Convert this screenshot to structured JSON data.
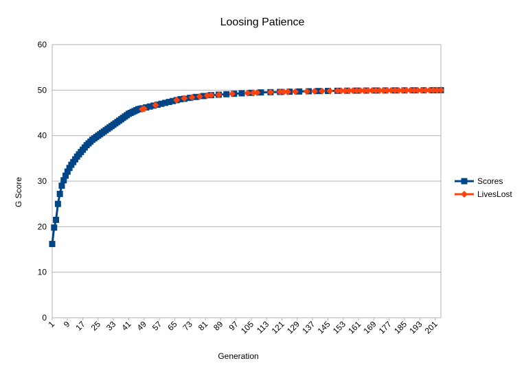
{
  "chart_data": {
    "type": "line",
    "title": "Loosing Patience",
    "xlabel": "Generation",
    "ylabel": "G Score",
    "ylim": [
      0,
      60
    ],
    "yticks": [
      0,
      10,
      20,
      30,
      40,
      50,
      60
    ],
    "xlim": [
      1,
      204
    ],
    "xticks": [
      1,
      9,
      17,
      25,
      33,
      41,
      49,
      57,
      65,
      73,
      81,
      89,
      97,
      105,
      113,
      121,
      129,
      137,
      145,
      153,
      161,
      169,
      177,
      185,
      193,
      201
    ],
    "grid": "horizontal",
    "legend": "right",
    "series": [
      {
        "name": "Scores",
        "color": "#004586",
        "marker": "square",
        "points": [
          [
            1,
            16.2
          ],
          [
            2,
            19.8
          ],
          [
            3,
            21.5
          ],
          [
            4,
            25.0
          ],
          [
            5,
            27.2
          ],
          [
            6,
            29.0
          ],
          [
            7,
            30.2
          ],
          [
            8,
            31.2
          ],
          [
            9,
            32.1
          ],
          [
            10,
            32.9
          ],
          [
            11,
            33.6
          ],
          [
            12,
            34.2
          ],
          [
            13,
            34.8
          ],
          [
            14,
            35.4
          ],
          [
            15,
            35.9
          ],
          [
            16,
            36.4
          ],
          [
            17,
            36.9
          ],
          [
            18,
            37.4
          ],
          [
            19,
            37.9
          ],
          [
            20,
            38.3
          ],
          [
            21,
            38.7
          ],
          [
            22,
            39.1
          ],
          [
            23,
            39.4
          ],
          [
            24,
            39.7
          ],
          [
            25,
            40.0
          ],
          [
            26,
            40.3
          ],
          [
            27,
            40.6
          ],
          [
            28,
            40.9
          ],
          [
            29,
            41.2
          ],
          [
            30,
            41.5
          ],
          [
            31,
            41.8
          ],
          [
            32,
            42.1
          ],
          [
            33,
            42.4
          ],
          [
            34,
            42.7
          ],
          [
            35,
            43.0
          ],
          [
            36,
            43.3
          ],
          [
            37,
            43.6
          ],
          [
            38,
            43.9
          ],
          [
            39,
            44.2
          ],
          [
            40,
            44.5
          ],
          [
            41,
            44.8
          ],
          [
            42,
            45.0
          ],
          [
            43,
            45.2
          ],
          [
            44,
            45.4
          ],
          [
            45,
            45.6
          ],
          [
            46,
            45.8
          ],
          [
            47,
            45.9
          ],
          [
            48,
            46.0
          ],
          [
            50,
            46.2
          ],
          [
            52,
            46.4
          ],
          [
            54,
            46.6
          ],
          [
            56,
            46.8
          ],
          [
            58,
            47.0
          ],
          [
            60,
            47.2
          ],
          [
            62,
            47.4
          ],
          [
            64,
            47.6
          ],
          [
            66,
            47.8
          ],
          [
            68,
            48.0
          ],
          [
            70,
            48.1
          ],
          [
            73,
            48.3
          ],
          [
            76,
            48.5
          ],
          [
            80,
            48.7
          ],
          [
            84,
            48.9
          ],
          [
            88,
            49.0
          ],
          [
            92,
            49.1
          ],
          [
            96,
            49.2
          ],
          [
            100,
            49.3
          ],
          [
            105,
            49.4
          ],
          [
            110,
            49.5
          ],
          [
            115,
            49.55
          ],
          [
            120,
            49.6
          ],
          [
            125,
            49.65
          ],
          [
            130,
            49.7
          ],
          [
            135,
            49.75
          ],
          [
            140,
            49.8
          ],
          [
            145,
            49.82
          ],
          [
            150,
            49.85
          ],
          [
            155,
            49.87
          ],
          [
            160,
            49.89
          ],
          [
            165,
            49.9
          ],
          [
            170,
            49.92
          ],
          [
            175,
            49.93
          ],
          [
            180,
            49.94
          ],
          [
            185,
            49.95
          ],
          [
            190,
            49.96
          ],
          [
            195,
            49.97
          ],
          [
            200,
            49.98
          ],
          [
            204,
            49.99
          ]
        ]
      },
      {
        "name": "LivesLost",
        "color": "#ff420e",
        "marker": "diamond",
        "points": [
          [
            48,
            45.8
          ],
          [
            49,
            45.9
          ],
          [
            55,
            46.7
          ],
          [
            66,
            47.8
          ],
          [
            70,
            48.2
          ],
          [
            74,
            48.4
          ],
          [
            78,
            48.6
          ],
          [
            82,
            48.8
          ],
          [
            84,
            48.9
          ],
          [
            88,
            49.0
          ],
          [
            95,
            49.2
          ],
          [
            103,
            49.35
          ],
          [
            106,
            49.4
          ],
          [
            108,
            49.45
          ],
          [
            115,
            49.55
          ],
          [
            120,
            49.6
          ],
          [
            122,
            49.62
          ],
          [
            124,
            49.63
          ],
          [
            128,
            49.66
          ],
          [
            134,
            49.7
          ],
          [
            138,
            49.75
          ],
          [
            142,
            49.78
          ],
          [
            146,
            49.82
          ],
          [
            150,
            49.85
          ],
          [
            152,
            49.86
          ],
          [
            154,
            49.87
          ],
          [
            156,
            49.88
          ],
          [
            158,
            49.88
          ],
          [
            160,
            49.89
          ],
          [
            162,
            49.9
          ],
          [
            164,
            49.9
          ],
          [
            166,
            49.91
          ],
          [
            168,
            49.91
          ],
          [
            170,
            49.92
          ],
          [
            172,
            49.92
          ],
          [
            174,
            49.93
          ],
          [
            176,
            49.93
          ],
          [
            178,
            49.94
          ],
          [
            180,
            49.94
          ],
          [
            182,
            49.94
          ],
          [
            184,
            49.95
          ],
          [
            186,
            49.95
          ],
          [
            188,
            49.95
          ],
          [
            190,
            49.96
          ],
          [
            192,
            49.96
          ],
          [
            194,
            49.96
          ],
          [
            196,
            49.97
          ],
          [
            198,
            49.97
          ],
          [
            200,
            49.98
          ],
          [
            202,
            49.98
          ],
          [
            204,
            49.99
          ]
        ]
      }
    ]
  }
}
